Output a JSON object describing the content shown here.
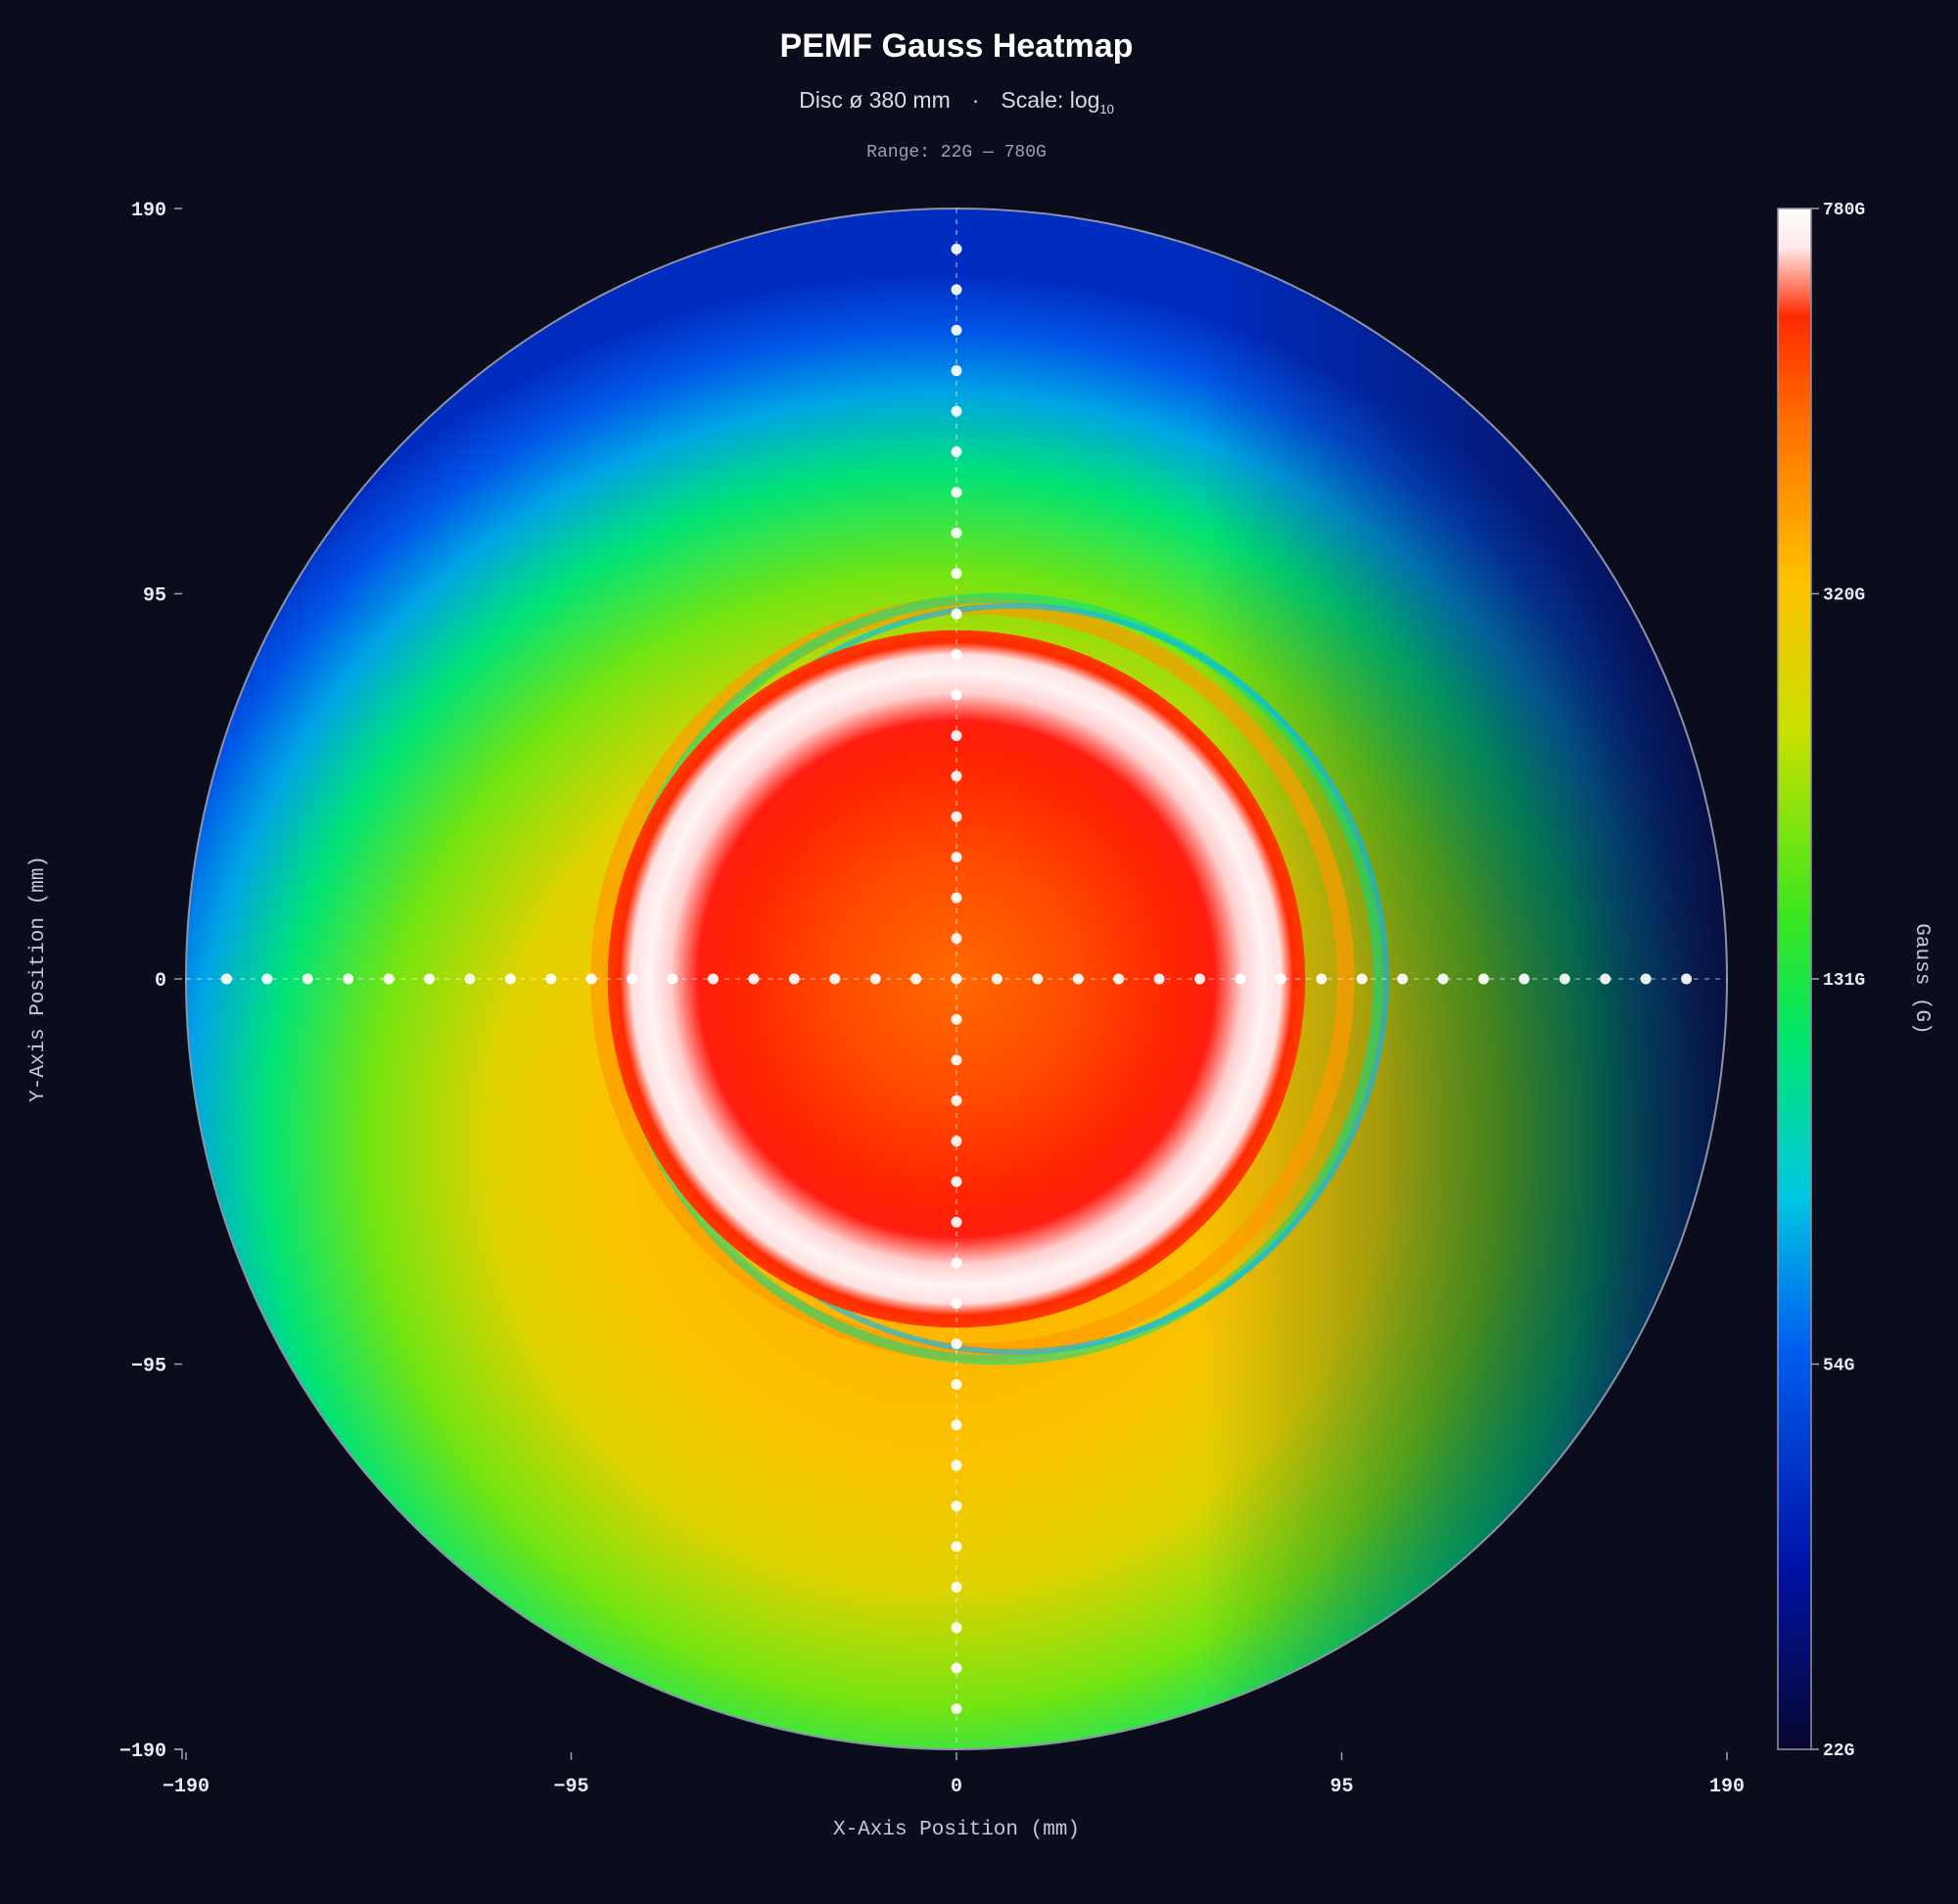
{
  "header": {
    "title": "PEMF Gauss Heatmap",
    "subtitle_disc": "Disc  ø 380 mm",
    "subtitle_sep": "·",
    "subtitle_scale": "Scale: log",
    "subtitle_scale_sub": "10",
    "range": "Range: 22G — 780G"
  },
  "chart_data": {
    "type": "heatmap",
    "title": "PEMF Gauss Heatmap",
    "xlabel": "X-Axis Position (mm)",
    "ylabel": "Y-Axis Position (mm)",
    "colorbar_label": "Gauss (G)",
    "xlim": [
      -190,
      190
    ],
    "ylim": [
      -190,
      190
    ],
    "x_ticks": [
      -190,
      -95,
      0,
      95,
      190
    ],
    "y_ticks": [
      190,
      95,
      0,
      -95,
      -190
    ],
    "x_tick_labels": [
      "−190",
      "−95",
      "0",
      "95",
      "190"
    ],
    "y_tick_labels": [
      "190",
      "95",
      "0",
      "−95",
      "−190"
    ],
    "value_range": [
      22,
      780
    ],
    "color_scale": "log10",
    "colorbar_ticks": [
      780,
      320,
      131,
      54,
      22
    ],
    "colorbar_tick_labels": [
      "780G",
      "320G",
      "131G",
      "54G",
      "22G"
    ],
    "disc_diameter_mm": 380,
    "colors": [
      "#07072e",
      "#0012a8",
      "#005ef0",
      "#00c8e0",
      "#00e66e",
      "#39e61e",
      "#c8e000",
      "#ffc000",
      "#ff7000",
      "#ff2a00",
      "#ffe8e8",
      "#ffffff"
    ],
    "field_profile": {
      "core_center_mm": [
        0,
        0
      ],
      "core_value_G": 520,
      "peak_ring_radius_mm": 75,
      "peak_value_G": 780,
      "ring_edge_radius_mm": 86,
      "ring_edge_value_G": 620,
      "field_center_mm": [
        -5,
        -40
      ],
      "field_values_G": [
        [
          0,
          330
        ],
        [
          95,
          280
        ],
        [
          150,
          130
        ],
        [
          190,
          60
        ]
      ],
      "field_gradient": "lower toward +x side"
    },
    "measurement_points": {
      "x_axis_mm": [
        -180,
        -170,
        -160,
        -150,
        -140,
        -130,
        -120,
        -110,
        -100,
        -90,
        -80,
        -70,
        -60,
        -50,
        -40,
        -30,
        -20,
        -10,
        0,
        10,
        20,
        30,
        40,
        50,
        60,
        70,
        80,
        90,
        100,
        110,
        120,
        130,
        140,
        150,
        160,
        170,
        180
      ],
      "y_axis_mm": [
        180,
        170,
        160,
        150,
        140,
        130,
        120,
        110,
        100,
        90,
        80,
        70,
        60,
        50,
        40,
        30,
        20,
        10,
        0,
        -10,
        -20,
        -30,
        -40,
        -50,
        -60,
        -70,
        -80,
        -90,
        -100,
        -110,
        -120,
        -130,
        -140,
        -150,
        -160,
        -170,
        -180
      ]
    }
  }
}
